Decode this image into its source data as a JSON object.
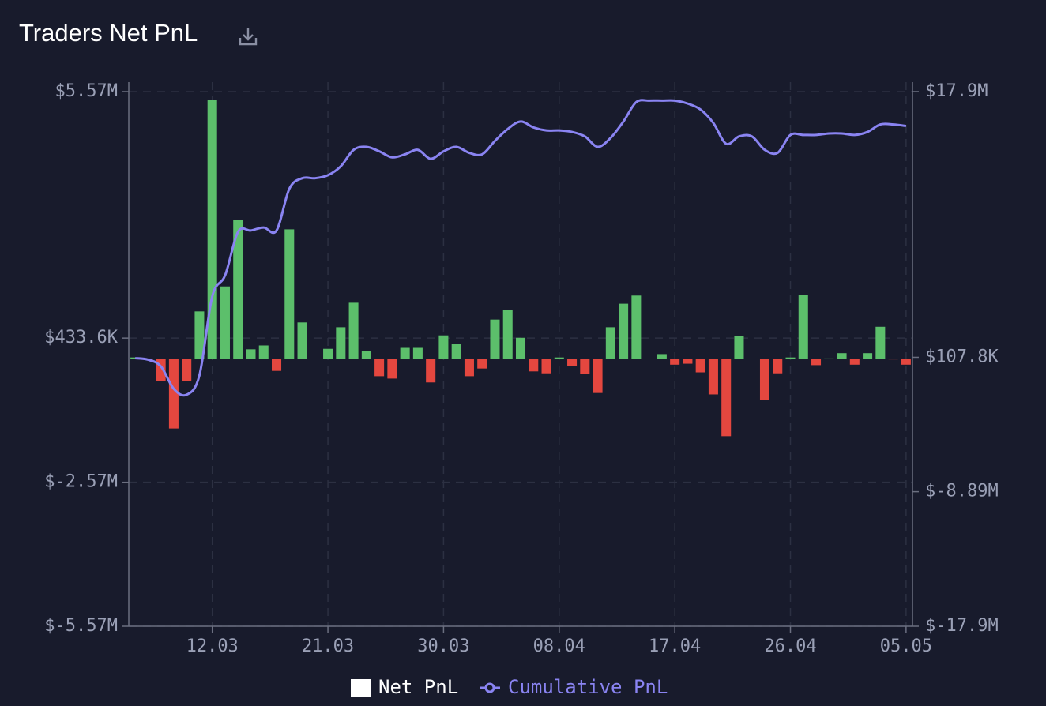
{
  "chart_data": {
    "type": "bar",
    "title": "Traders Net PnL",
    "categories": [
      null,
      null,
      null,
      null,
      null,
      null,
      "12.03",
      null,
      null,
      null,
      null,
      null,
      null,
      null,
      null,
      "21.03",
      null,
      null,
      null,
      null,
      null,
      null,
      null,
      null,
      "30.03",
      null,
      null,
      null,
      null,
      null,
      null,
      null,
      null,
      "08.04",
      null,
      null,
      null,
      null,
      null,
      null,
      null,
      null,
      "17.04",
      null,
      null,
      null,
      null,
      null,
      null,
      null,
      null,
      "26.04",
      null,
      null,
      null,
      null,
      null,
      null,
      null,
      null,
      "05.05"
    ],
    "series": [
      {
        "name": "Net PnL",
        "type": "bar",
        "axis": "y",
        "color": "#ffffff",
        "positive_color": "#5cbf6b",
        "negative_color": "#e4473f",
        "values": [
          30000,
          -20000,
          -460000,
          -1450000,
          -460000,
          990000,
          5390000,
          1510000,
          2890000,
          200000,
          280000,
          -250000,
          2700000,
          760000,
          0,
          210000,
          660000,
          1170000,
          160000,
          -360000,
          -410000,
          230000,
          230000,
          -490000,
          490000,
          310000,
          -360000,
          -200000,
          820000,
          1020000,
          440000,
          -260000,
          -300000,
          30000,
          -150000,
          -310000,
          -710000,
          660000,
          1150000,
          1320000,
          0,
          100000,
          -120000,
          -100000,
          -280000,
          -740000,
          -1610000,
          480000,
          0,
          -860000,
          -300000,
          30000,
          1330000,
          -130000,
          10000,
          120000,
          -120000,
          120000,
          670000,
          -10000,
          -120000
        ]
      },
      {
        "name": "Cumulative PnL",
        "type": "line",
        "axis": "y2",
        "color": "#8a84f2",
        "values": [
          50000,
          -50000,
          -500000,
          -2000000,
          -2400000,
          -1100000,
          4200000,
          5600000,
          8500000,
          8600000,
          8800000,
          8600000,
          11400000,
          12100000,
          12100000,
          12300000,
          12900000,
          14000000,
          14200000,
          13900000,
          13500000,
          13700000,
          14000000,
          13400000,
          13900000,
          14200000,
          13800000,
          13700000,
          14600000,
          15400000,
          15900000,
          15500000,
          15300000,
          15300000,
          15200000,
          14900000,
          14200000,
          14800000,
          15900000,
          17200000,
          17300000,
          17300000,
          17300000,
          17100000,
          16700000,
          15800000,
          14400000,
          14900000,
          14900000,
          14000000,
          13800000,
          15000000,
          15000000,
          15000000,
          15100000,
          15100000,
          15000000,
          15200000,
          15700000,
          15700000,
          15600000
        ]
      }
    ],
    "ylim": [
      -5570000,
      5570000
    ],
    "yticks": [
      {
        "value": -5570000,
        "label": "$-5.57M"
      },
      {
        "value": -2570000,
        "label": "$-2.57M"
      },
      {
        "value": 433600,
        "label": "$433.6K"
      },
      {
        "value": 5570000,
        "label": "$5.57M"
      }
    ],
    "y2lim": [
      -17900000,
      17900000
    ],
    "y2ticks": [
      {
        "value": -17900000,
        "label": "$-17.9M"
      },
      {
        "value": -8890000,
        "label": "$-8.89M"
      },
      {
        "value": 107800,
        "label": "$107.8K"
      },
      {
        "value": 17900000,
        "label": "$17.9M"
      }
    ],
    "grid": true
  }
}
